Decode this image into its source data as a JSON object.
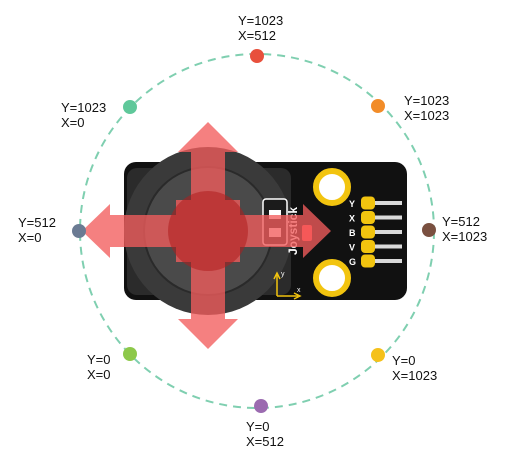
{
  "colors": {
    "ring": "#7fcfb0",
    "board": "#111111",
    "arrow": "#f25c5c",
    "gold": "#f2c40f",
    "silk": "#ffffff",
    "axis_glyph": "#f2c40f"
  },
  "board": {
    "module_label": "Joystick",
    "pins": [
      "Y",
      "X",
      "B",
      "V",
      "G"
    ],
    "axis_x": "x",
    "axis_y": "y"
  },
  "positions": [
    {
      "id": "top",
      "y_label": "Y=1023",
      "x_label": "X=512",
      "color": "#e8503c"
    },
    {
      "id": "top-left",
      "y_label": "Y=1023",
      "x_label": "X=0",
      "color": "#5fc89a"
    },
    {
      "id": "top-right",
      "y_label": "Y=1023",
      "x_label": "X=1023",
      "color": "#f28c28"
    },
    {
      "id": "left",
      "y_label": "Y=512",
      "x_label": "X=0",
      "color": "#6b7b93"
    },
    {
      "id": "right",
      "y_label": "Y=512",
      "x_label": "X=1023",
      "color": "#7a5040"
    },
    {
      "id": "bottom-left",
      "y_label": "Y=0",
      "x_label": "X=0",
      "color": "#8dc84a"
    },
    {
      "id": "bottom-right",
      "y_label": "Y=0",
      "x_label": "X=1023",
      "color": "#f5c11a"
    },
    {
      "id": "bottom",
      "y_label": "Y=0",
      "x_label": "X=512",
      "color": "#9b6bb0"
    }
  ]
}
